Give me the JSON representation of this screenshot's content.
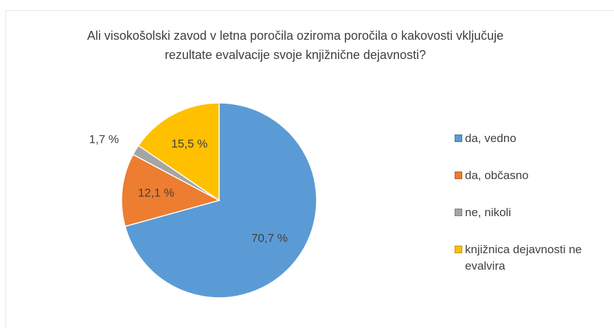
{
  "chart_data": {
    "type": "pie",
    "title": "Ali visokošolski zavod v letna poročila oziroma poročila o kakovosti vključuje rezultate evalvacije svoje knjižnične dejavnosti?",
    "categories": [
      "da, vedno",
      "da, občasno",
      "ne, nikoli",
      "knjižnica dejavnosti ne evalvira"
    ],
    "values": [
      70.7,
      12.1,
      1.7,
      15.5
    ],
    "value_labels": [
      "70,7 %",
      "12,1 %",
      "1,7 %",
      "15,5 %"
    ],
    "colors": [
      "#5b9bd5",
      "#ed7d31",
      "#a5a5a5",
      "#ffc000"
    ],
    "legend": "right"
  }
}
